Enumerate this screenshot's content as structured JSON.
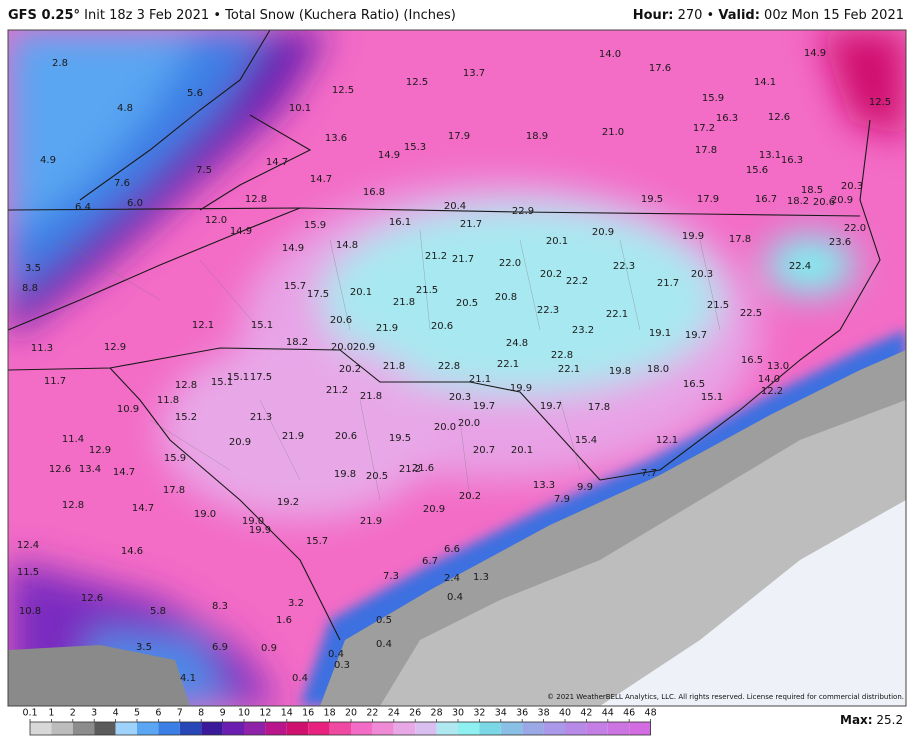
{
  "header": {
    "model": "GFS 0.25°",
    "init": "Init 18z 3 Feb 2021 • Total Snow (Kuchera Ratio) (Inches)",
    "hour_label": "Hour:",
    "hour": "270",
    "separator": "•",
    "valid_label": "Valid:",
    "valid": "00z Mon 15 Feb 2021"
  },
  "map": {
    "labels": [
      "2.8",
      "4.8",
      "5.6",
      "10.1",
      "12.5",
      "12.5",
      "13.7",
      "14.0",
      "17.6",
      "14.9",
      "14.1",
      "12.5",
      "15.9",
      "16.3",
      "17.2",
      "12.6",
      "13.6",
      "14.9",
      "15.3",
      "17.9",
      "18.9",
      "21.0",
      "17.8",
      "13.1",
      "16.3",
      "15.6",
      "4.9",
      "7.6",
      "7.5",
      "14.7",
      "14.7",
      "16.8",
      "6.4",
      "6.0",
      "12.8",
      "20.4",
      "22.9",
      "19.5",
      "17.9",
      "16.7",
      "18.5",
      "18.2",
      "20.6",
      "20.3",
      "20.9",
      "22.0",
      "12.0",
      "14.9",
      "15.9",
      "16.1",
      "21.7",
      "20.9",
      "19.9",
      "17.8",
      "23.6",
      "3.5",
      "14.9",
      "14.8",
      "21.2",
      "21.7",
      "22.0",
      "20.1",
      "20.2",
      "22.2",
      "22.3",
      "20.3",
      "21.7",
      "22.4",
      "8.8",
      "15.7",
      "17.5",
      "20.1",
      "21.8",
      "21.5",
      "20.5",
      "20.8",
      "22.3",
      "22.1",
      "21.5",
      "22.5",
      "12.1",
      "15.1",
      "20.6",
      "21.9",
      "20.6",
      "23.2",
      "19.1",
      "19.7",
      "24.8",
      "18.2",
      "20.0",
      "20.9",
      "11.3",
      "12.9",
      "22.8",
      "16.5",
      "13.0",
      "21.8",
      "22.8",
      "22.1",
      "22.1",
      "19.8",
      "18.0",
      "20.2",
      "14.0",
      "11.7",
      "12.8",
      "15.1",
      "15.1",
      "17.5",
      "21.1",
      "19.9",
      "16.5",
      "12.2",
      "15.1",
      "21.2",
      "21.8",
      "20.3",
      "11.8",
      "10.9",
      "19.7",
      "19.7",
      "17.8",
      "15.2",
      "21.3",
      "20.0",
      "20.0",
      "12.9",
      "11.4",
      "20.9",
      "21.9",
      "20.6",
      "19.5",
      "15.4",
      "12.1",
      "20.7",
      "20.1",
      "15.9",
      "12.6",
      "13.4",
      "14.7",
      "19.8",
      "20.5",
      "21.2",
      "21.6",
      "7.7",
      "13.3",
      "9.9",
      "17.8",
      "12.8",
      "14.7",
      "19.2",
      "20.2",
      "7.9",
      "19.0",
      "20.9",
      "19.0",
      "19.9",
      "21.9",
      "12.4",
      "14.6",
      "15.7",
      "6.6",
      "6.7",
      "11.5",
      "7.3",
      "2.4",
      "1.3",
      "12.6",
      "3.2",
      "0.4",
      "10.8",
      "5.8",
      "8.3",
      "1.6",
      "0.5",
      "0.4",
      "3.5",
      "6.9",
      "0.9",
      "0.4",
      "0.3",
      "4.1",
      "0.4"
    ]
  },
  "legend": {
    "ticks": [
      0.1,
      1,
      2,
      3,
      4,
      5,
      6,
      7,
      8,
      9,
      10,
      12,
      14,
      16,
      18,
      20,
      22,
      24,
      26,
      28,
      30,
      32,
      34,
      36,
      38,
      40,
      42,
      44,
      46,
      48
    ]
  },
  "footer": {
    "copyright": "© 2021 WeatherBELL Analytics, LLC. All rights reserved. License required for commercial distribution.",
    "max_label": "Max:",
    "max_value": "25.2"
  }
}
